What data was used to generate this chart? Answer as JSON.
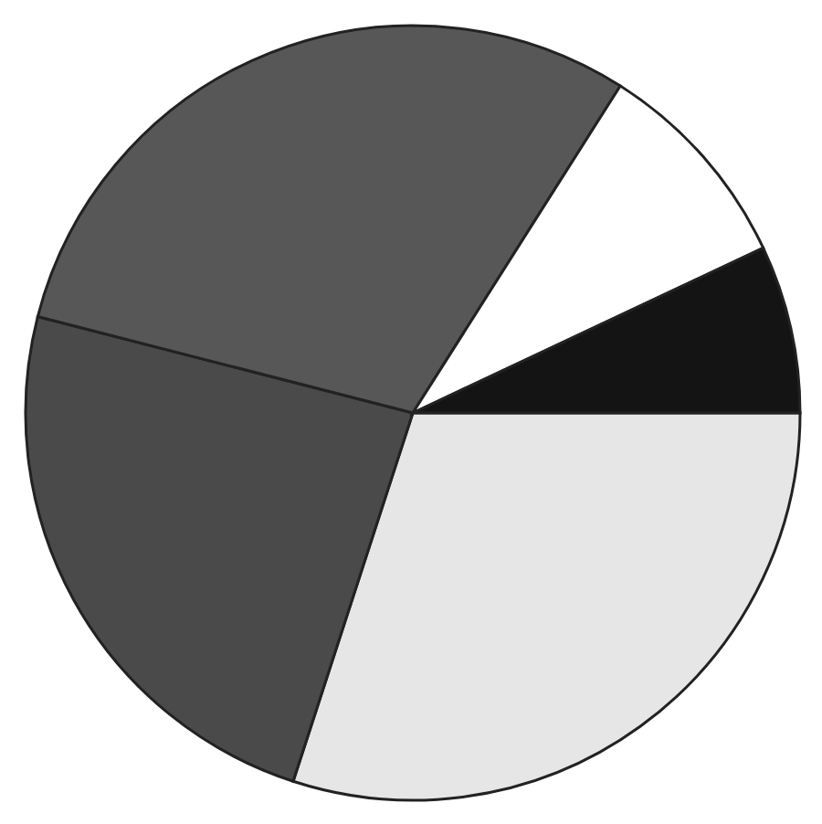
{
  "chart_data": {
    "type": "pie",
    "categories": [
      null,
      null,
      null,
      null,
      null
    ],
    "values": [
      30,
      24,
      30,
      9,
      7
    ],
    "colors": [
      "#e6e6e6",
      "#4a4a4a",
      "#575757",
      "#ffffff",
      "#141414"
    ]
  }
}
